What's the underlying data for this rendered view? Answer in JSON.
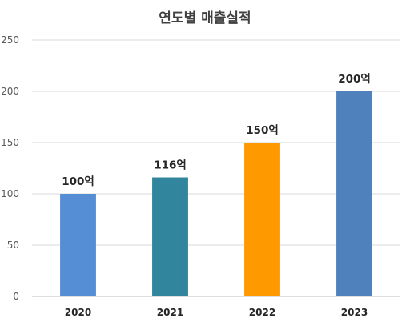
{
  "chart_data": {
    "type": "bar",
    "title": "연도별 매출실적",
    "categories": [
      "2020",
      "2021",
      "2022",
      "2023"
    ],
    "values": [
      100,
      116,
      150,
      200
    ],
    "data_labels": [
      "100억",
      "116억",
      "150억",
      "200억"
    ],
    "bar_colors": [
      "#558ed5",
      "#31859c",
      "#ff9900",
      "#4f81bd"
    ],
    "ylim": [
      0,
      250
    ],
    "yticks": [
      0,
      50,
      100,
      150,
      200,
      250
    ],
    "grid": true,
    "legend": "none",
    "xlabel": "",
    "ylabel": ""
  }
}
